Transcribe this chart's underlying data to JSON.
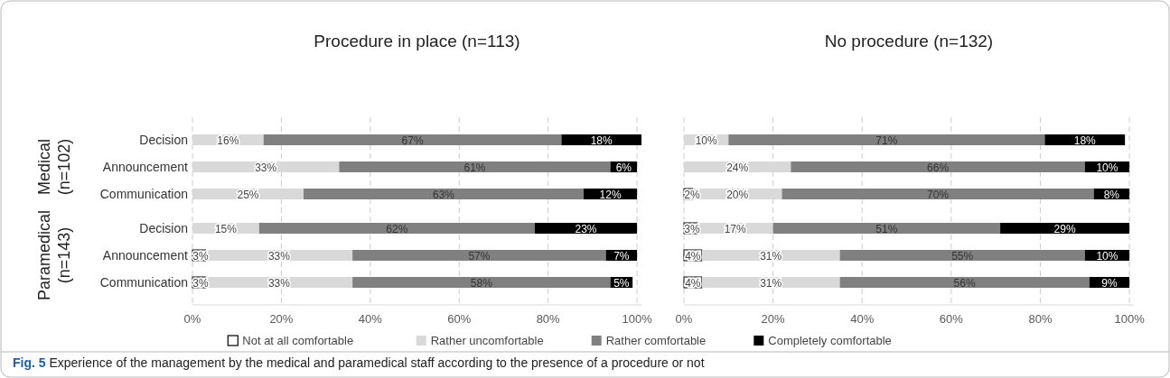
{
  "chart_data": [
    {
      "type": "bar",
      "orientation": "horizontal",
      "stacked": true,
      "title": "Procedure in place (n=113)",
      "categories": [
        "Decision",
        "Announcement",
        "Communication",
        null,
        "Decision",
        "Announcement",
        "Communication"
      ],
      "series": [
        {
          "name": "Not at all comfortable",
          "color": "#ffffff",
          "values": [
            null,
            null,
            null,
            null,
            null,
            3,
            3
          ],
          "value_labels": [
            null,
            null,
            null,
            null,
            null,
            "3%",
            "3%"
          ]
        },
        {
          "name": "Rather uncomfortable",
          "color": "#d9d9d9",
          "values": [
            16,
            33,
            25,
            null,
            15,
            33,
            33
          ],
          "value_labels": [
            "16%",
            "33%",
            "25%",
            null,
            "15%",
            "33%",
            "33%"
          ]
        },
        {
          "name": "Rather comfortable",
          "color": "#808080",
          "values": [
            67,
            61,
            63,
            null,
            62,
            57,
            58
          ],
          "value_labels": [
            "67%",
            "61%",
            "63%",
            null,
            "62%",
            "57%",
            "58%"
          ]
        },
        {
          "name": "Completely comfortable",
          "color": "#000000",
          "values": [
            18,
            6,
            12,
            null,
            23,
            7,
            5
          ],
          "value_labels": [
            "18%",
            "6%",
            "12%",
            null,
            "23%",
            "7%",
            "5%"
          ]
        }
      ],
      "xlim": [
        0,
        101
      ],
      "xticks": [
        {
          "value": 0,
          "label": "0%"
        },
        {
          "value": 20,
          "label": "20%"
        },
        {
          "value": 40,
          "label": "40%"
        },
        {
          "value": 60,
          "label": "60%"
        },
        {
          "value": 80,
          "label": "80%"
        },
        {
          "value": 100,
          "label": "100%"
        }
      ],
      "grid": "x",
      "legend": "bottom",
      "annotations": [
        "Medical (n=102)",
        "Paramedical (n=143)",
        "Fig. 5 Experience of the management by the medical and paramedical staff according to the presence of a procedure or not"
      ]
    },
    {
      "type": "bar",
      "orientation": "horizontal",
      "stacked": true,
      "title": "No procedure (n=132)",
      "categories": [
        null,
        null,
        null,
        null,
        null,
        null,
        null
      ],
      "series": [
        {
          "color": "#ffffff",
          "values": [
            null,
            null,
            2,
            null,
            3,
            4,
            4
          ],
          "value_labels": [
            null,
            null,
            "2%",
            null,
            "3%",
            "4%",
            "4%"
          ]
        },
        {
          "color": "#d9d9d9",
          "values": [
            10,
            24,
            20,
            null,
            17,
            31,
            31
          ],
          "value_labels": [
            "10%",
            "24%",
            "20%",
            null,
            "17%",
            "31%",
            "31%"
          ]
        },
        {
          "color": "#808080",
          "values": [
            71,
            66,
            70,
            null,
            51,
            55,
            56
          ],
          "value_labels": [
            "71%",
            "66%",
            "70%",
            null,
            "51%",
            "55%",
            "56%"
          ]
        },
        {
          "color": "#000000",
          "values": [
            18,
            10,
            8,
            null,
            29,
            10,
            9
          ],
          "value_labels": [
            "18%",
            "10%",
            "8%",
            null,
            "29%",
            "10%",
            "9%"
          ]
        }
      ],
      "xlim": [
        0,
        101
      ],
      "xticks": [
        {
          "value": 0,
          "label": "0%"
        },
        {
          "value": 20,
          "label": "20%"
        },
        {
          "value": 40,
          "label": "40%"
        },
        {
          "value": 60,
          "label": "60%"
        },
        {
          "value": 80,
          "label": "80%"
        },
        {
          "value": 100,
          "label": "100%"
        }
      ],
      "grid": "x"
    }
  ]
}
